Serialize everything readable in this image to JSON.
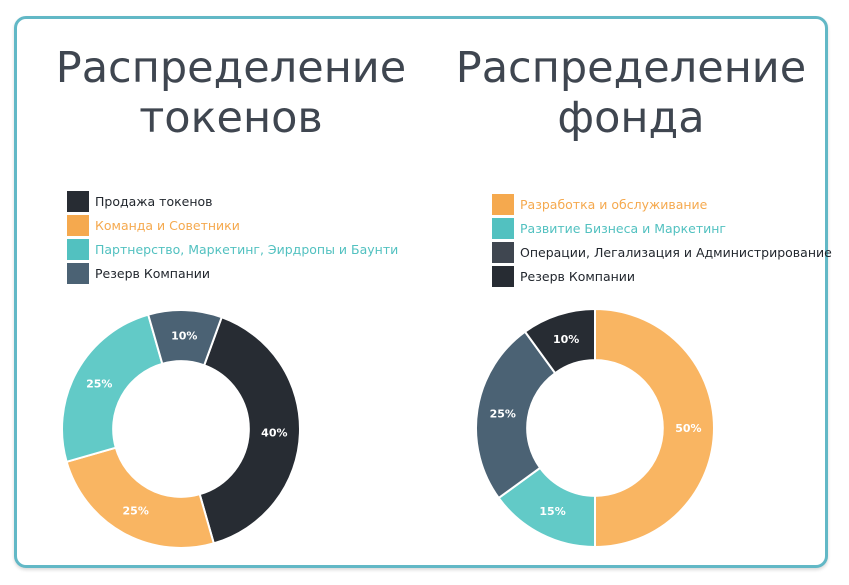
{
  "chart_data": [
    {
      "type": "pie",
      "title_lines": [
        "Распределение",
        "токенов"
      ],
      "slices": [
        {
          "label": "Продажа токенов",
          "value": 40,
          "label_text": "40%",
          "color": "#272c33",
          "legend_color": "#272c33"
        },
        {
          "label": "Команда и Советники",
          "value": 25,
          "label_text": "25%",
          "color": "#f9b562",
          "legend_color": "#f5a94e"
        },
        {
          "label": "Партнерство, Маркетинг, Эирдропы и Баунти",
          "value": 25,
          "label_text": "25%",
          "color": "#62cac7",
          "legend_color": "#52c1c0"
        },
        {
          "label": "Резерв Компании",
          "value": 10,
          "label_text": "10%",
          "color": "#4b6274",
          "legend_color": "#4b6274"
        }
      ],
      "start_angle_deg": 20,
      "hole_ratio": 0.57
    },
    {
      "type": "pie",
      "title_lines": [
        "Распределение",
        "фонда"
      ],
      "slices": [
        {
          "label": "Разработка и обслуживание",
          "value": 50,
          "label_text": "50%",
          "color": "#f9b562",
          "legend_color": "#f5a94e"
        },
        {
          "label": "Развитие Бизнеса и Маркетинг",
          "value": 15,
          "label_text": "15%",
          "color": "#62cac7",
          "legend_color": "#52c1c0"
        },
        {
          "label": "Операции, Легализация и Администрирование",
          "value": 25,
          "label_text": "25%",
          "color": "#4b6274",
          "legend_color": "#3f4650"
        },
        {
          "label": "Резерв Компании",
          "value": 10,
          "label_text": "10%",
          "color": "#272c33",
          "legend_color": "#272c33"
        }
      ],
      "start_angle_deg": 0,
      "hole_ratio": 0.57
    }
  ]
}
